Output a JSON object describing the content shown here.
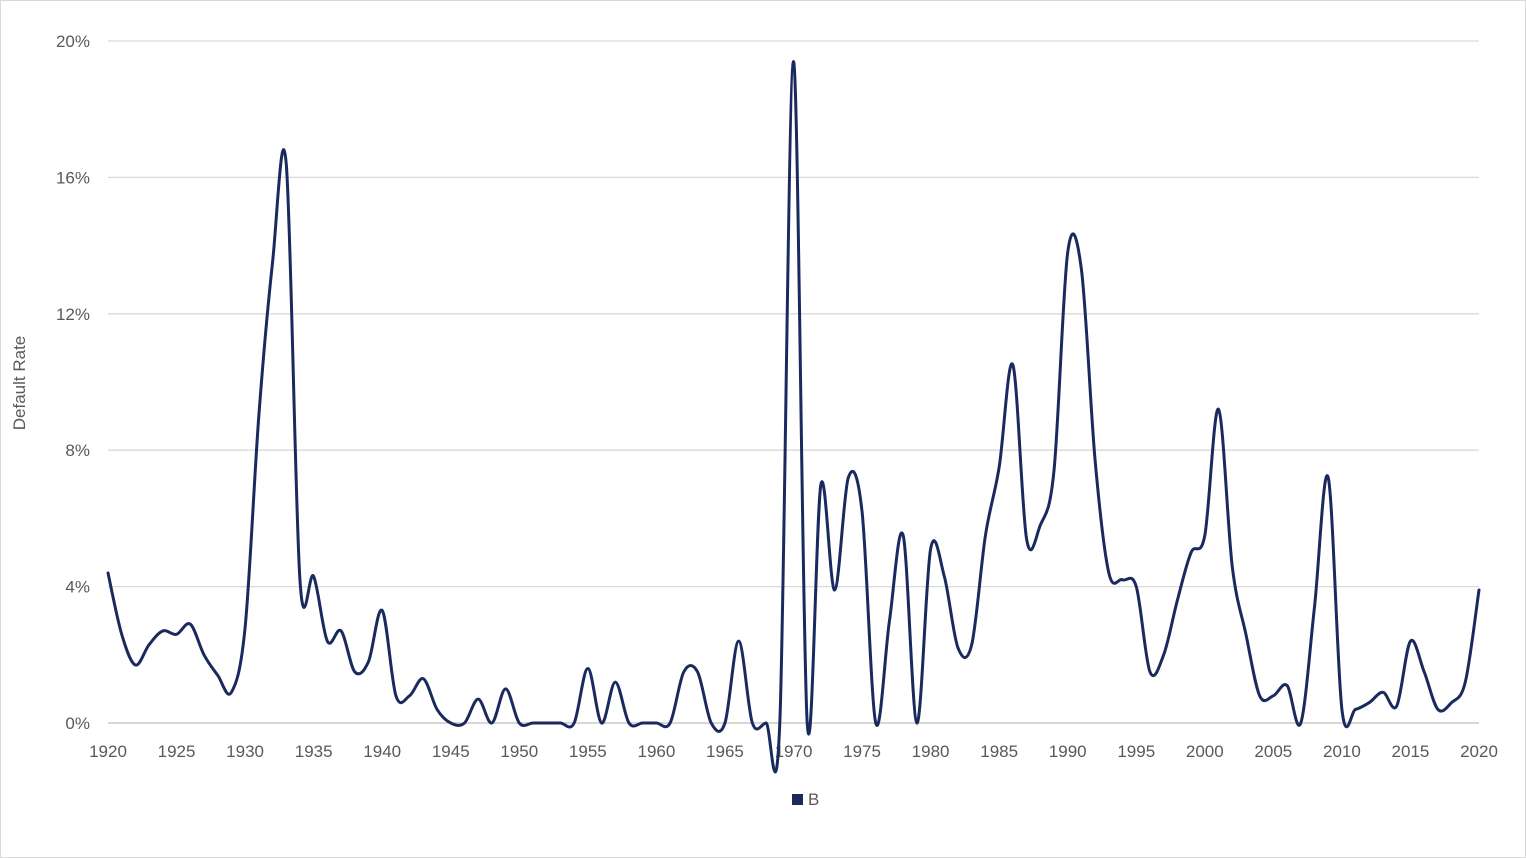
{
  "chart_data": {
    "type": "line",
    "title": "",
    "xlabel": "",
    "ylabel": "Default Rate",
    "xlim": [
      1920,
      2020
    ],
    "ylim": [
      0,
      20
    ],
    "x_ticks": [
      1920,
      1925,
      1930,
      1935,
      1940,
      1945,
      1950,
      1955,
      1960,
      1965,
      1970,
      1975,
      1980,
      1985,
      1990,
      1995,
      2000,
      2005,
      2010,
      2015,
      2020
    ],
    "y_ticks": [
      {
        "value": 0,
        "label": "0%"
      },
      {
        "value": 4,
        "label": "4%"
      },
      {
        "value": 8,
        "label": "8%"
      },
      {
        "value": 12,
        "label": "12%"
      },
      {
        "value": 16,
        "label": "16%"
      },
      {
        "value": 20,
        "label": "20%"
      }
    ],
    "grid": true,
    "legend_position": "bottom",
    "series": [
      {
        "name": "B",
        "color": "#1a2a5e",
        "x": [
          1920,
          1921,
          1922,
          1923,
          1924,
          1925,
          1926,
          1927,
          1928,
          1929,
          1930,
          1931,
          1932,
          1933,
          1934,
          1935,
          1936,
          1937,
          1938,
          1939,
          1940,
          1941,
          1942,
          1943,
          1944,
          1945,
          1946,
          1947,
          1948,
          1949,
          1950,
          1951,
          1952,
          1953,
          1954,
          1955,
          1956,
          1957,
          1958,
          1959,
          1960,
          1961,
          1962,
          1963,
          1964,
          1965,
          1966,
          1967,
          1968,
          1969,
          1970,
          1971,
          1972,
          1973,
          1974,
          1975,
          1976,
          1977,
          1978,
          1979,
          1980,
          1981,
          1982,
          1983,
          1984,
          1985,
          1986,
          1987,
          1988,
          1989,
          1990,
          1991,
          1992,
          1993,
          1994,
          1995,
          1996,
          1997,
          1998,
          1999,
          2000,
          2001,
          2002,
          2003,
          2004,
          2005,
          2006,
          2007,
          2008,
          2009,
          2010,
          2011,
          2012,
          2013,
          2014,
          2015,
          2016,
          2017,
          2018,
          2019,
          2020
        ],
        "values": [
          4.4,
          2.6,
          1.7,
          2.3,
          2.7,
          2.6,
          2.9,
          2.0,
          1.4,
          0.9,
          2.8,
          9.0,
          13.5,
          16.4,
          4.2,
          4.3,
          2.4,
          2.7,
          1.5,
          1.8,
          3.3,
          0.8,
          0.8,
          1.3,
          0.4,
          0.0,
          0.0,
          0.7,
          0.0,
          1.0,
          0.0,
          0.0,
          0.0,
          0.0,
          0.0,
          1.6,
          0.0,
          1.2,
          0.0,
          0.0,
          0.0,
          0.0,
          1.5,
          1.5,
          0.0,
          0.0,
          2.4,
          0.0,
          0.0,
          0.0,
          19.4,
          0.0,
          7.0,
          3.9,
          7.2,
          6.2,
          0.0,
          3.0,
          5.5,
          0.0,
          5.1,
          4.3,
          2.2,
          2.3,
          5.5,
          7.5,
          10.5,
          5.4,
          5.8,
          7.4,
          13.8,
          13.3,
          7.7,
          4.4,
          4.2,
          4.0,
          1.5,
          2.0,
          3.6,
          5.0,
          5.5,
          9.2,
          4.6,
          2.6,
          0.8,
          0.8,
          1.1,
          0.0,
          3.4,
          7.2,
          0.4,
          0.4,
          0.6,
          0.9,
          0.5,
          2.4,
          1.5,
          0.4,
          0.6,
          1.2,
          3.9
        ]
      }
    ]
  }
}
